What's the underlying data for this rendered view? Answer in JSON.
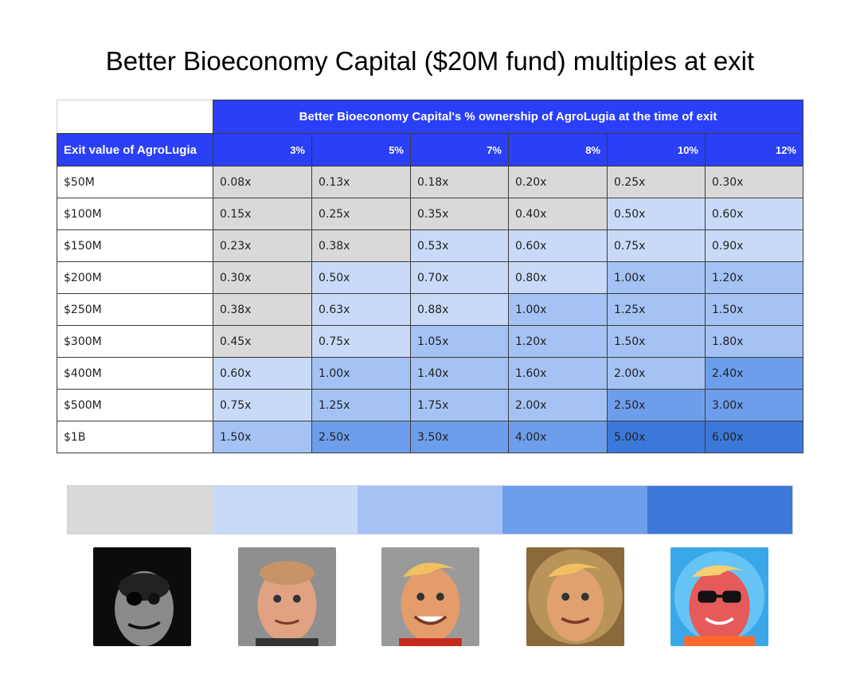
{
  "title": "Better Bioeconomy Capital ($20M fund) multiples at exit",
  "table": {
    "super_header": "Better Bioeconomy Capital's % ownership of AgroLugia at the time of exit",
    "row_header": "Exit value of AgroLugia",
    "columns": [
      "3%",
      "5%",
      "7%",
      "8%",
      "10%",
      "12%"
    ],
    "rows": [
      {
        "label": "$50M",
        "cells": [
          "0.08x",
          "0.13x",
          "0.18x",
          "0.20x",
          "0.25x",
          "0.30x"
        ],
        "tiers": [
          0,
          0,
          0,
          0,
          0,
          0
        ]
      },
      {
        "label": "$100M",
        "cells": [
          "0.15x",
          "0.25x",
          "0.35x",
          "0.40x",
          "0.50x",
          "0.60x"
        ],
        "tiers": [
          0,
          0,
          0,
          0,
          1,
          1
        ]
      },
      {
        "label": "$150M",
        "cells": [
          "0.23x",
          "0.38x",
          "0.53x",
          "0.60x",
          "0.75x",
          "0.90x"
        ],
        "tiers": [
          0,
          0,
          1,
          1,
          1,
          1
        ]
      },
      {
        "label": "$200M",
        "cells": [
          "0.30x",
          "0.50x",
          "0.70x",
          "0.80x",
          "1.00x",
          "1.20x"
        ],
        "tiers": [
          0,
          1,
          1,
          1,
          2,
          2
        ]
      },
      {
        "label": "$250M",
        "cells": [
          "0.38x",
          "0.63x",
          "0.88x",
          "1.00x",
          "1.25x",
          "1.50x"
        ],
        "tiers": [
          0,
          1,
          1,
          2,
          2,
          2
        ]
      },
      {
        "label": "$300M",
        "cells": [
          "0.45x",
          "0.75x",
          "1.05x",
          "1.20x",
          "1.50x",
          "1.80x"
        ],
        "tiers": [
          0,
          1,
          2,
          2,
          2,
          2
        ]
      },
      {
        "label": "$400M",
        "cells": [
          "0.60x",
          "1.00x",
          "1.40x",
          "1.60x",
          "2.00x",
          "2.40x"
        ],
        "tiers": [
          1,
          2,
          2,
          2,
          2,
          3
        ]
      },
      {
        "label": "$500M",
        "cells": [
          "0.75x",
          "1.25x",
          "1.75x",
          "2.00x",
          "2.50x",
          "3.00x"
        ],
        "tiers": [
          1,
          2,
          2,
          2,
          3,
          3
        ]
      },
      {
        "label": "$1B",
        "cells": [
          "1.50x",
          "2.50x",
          "3.50x",
          "4.00x",
          "5.00x",
          "6.00x"
        ],
        "tiers": [
          2,
          3,
          3,
          3,
          4,
          4
        ]
      }
    ]
  },
  "colors": {
    "header_blue": "#2a3ff6",
    "tiers": [
      "#d9d9d9",
      "#c9daf8",
      "#a4c2f4",
      "#6d9eeb",
      "#3c78d8"
    ]
  },
  "legend_faces": [
    {
      "name": "uncanny-face-icon",
      "tier": 0
    },
    {
      "name": "plain-face-icon",
      "tier": 1
    },
    {
      "name": "smiling-face-icon",
      "tier": 2
    },
    {
      "name": "glowing-face-icon",
      "tier": 3
    },
    {
      "name": "sunglasses-face-icon",
      "tier": 4
    }
  ]
}
